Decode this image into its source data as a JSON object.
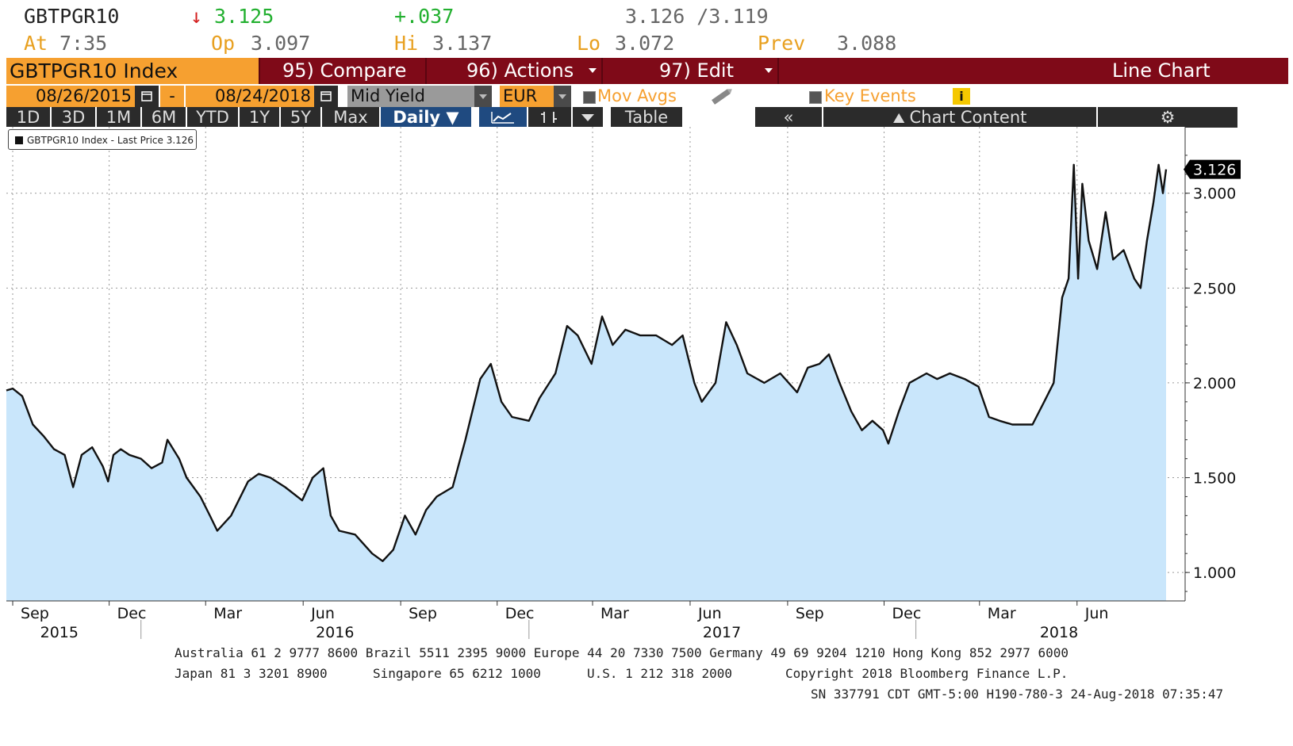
{
  "quote": {
    "ticker": "GBTPGR10",
    "arrow": "↓",
    "last": "3.125",
    "change": "+.037",
    "bid_ask": "3.126 /3.119",
    "at_label": "At",
    "at_time": "7:35",
    "open_label": "Op",
    "open": "3.097",
    "high_label": "Hi",
    "high": "3.137",
    "low_label": "Lo",
    "low": "3.072",
    "prev_label": "Prev",
    "prev": "3.088"
  },
  "titlebar": {
    "security": "GBTPGR10 Index",
    "compare": "95) Compare",
    "actions": "96) Actions",
    "edit": "97) Edit",
    "chart_type": "Line Chart"
  },
  "controls": {
    "start_date": "08/26/2015",
    "dash": "-",
    "end_date": "08/24/2018",
    "field": "Mid Yield",
    "currency": "EUR",
    "mov_avgs": "Mov Avgs",
    "key_events": "Key Events",
    "info": "i"
  },
  "periods": [
    "1D",
    "3D",
    "1M",
    "6M",
    "YTD",
    "1Y",
    "5Y",
    "Max"
  ],
  "frequency": "Daily ▼",
  "table_label": "Table",
  "chart_content": "Chart Content",
  "collapse_label": "«",
  "legend_text": "GBTPGR10 Index - Last Price 3.126",
  "last_price_tag": "3.126",
  "colors": {
    "area": "#c9e6fb",
    "line": "#111111",
    "titlebar": "#7f0a18",
    "orange": "#f6a030"
  },
  "chart_data": {
    "type": "area",
    "title": "",
    "series": [
      {
        "name": "GBTPGR10 Index - Last Price",
        "points": [
          [
            "2015-08-26",
            1.96
          ],
          [
            "2015-09-01",
            1.97
          ],
          [
            "2015-09-10",
            1.93
          ],
          [
            "2015-09-20",
            1.78
          ],
          [
            "2015-09-30",
            1.72
          ],
          [
            "2015-10-10",
            1.65
          ],
          [
            "2015-10-20",
            1.62
          ],
          [
            "2015-10-28",
            1.45
          ],
          [
            "2015-11-05",
            1.62
          ],
          [
            "2015-11-15",
            1.66
          ],
          [
            "2015-11-25",
            1.56
          ],
          [
            "2015-11-30",
            1.48
          ],
          [
            "2015-12-05",
            1.62
          ],
          [
            "2015-12-12",
            1.65
          ],
          [
            "2015-12-20",
            1.62
          ],
          [
            "2015-12-31",
            1.6
          ],
          [
            "2016-01-10",
            1.55
          ],
          [
            "2016-01-20",
            1.58
          ],
          [
            "2016-01-25",
            1.7
          ],
          [
            "2016-02-05",
            1.6
          ],
          [
            "2016-02-12",
            1.5
          ],
          [
            "2016-02-25",
            1.4
          ],
          [
            "2016-03-05",
            1.3
          ],
          [
            "2016-03-12",
            1.22
          ],
          [
            "2016-03-25",
            1.3
          ],
          [
            "2016-04-10",
            1.48
          ],
          [
            "2016-04-20",
            1.52
          ],
          [
            "2016-05-01",
            1.5
          ],
          [
            "2016-05-15",
            1.45
          ],
          [
            "2016-05-31",
            1.38
          ],
          [
            "2016-06-10",
            1.5
          ],
          [
            "2016-06-20",
            1.55
          ],
          [
            "2016-06-27",
            1.3
          ],
          [
            "2016-07-05",
            1.22
          ],
          [
            "2016-07-20",
            1.2
          ],
          [
            "2016-08-05",
            1.1
          ],
          [
            "2016-08-15",
            1.06
          ],
          [
            "2016-08-25",
            1.12
          ],
          [
            "2016-09-05",
            1.3
          ],
          [
            "2016-09-15",
            1.2
          ],
          [
            "2016-09-25",
            1.33
          ],
          [
            "2016-10-05",
            1.4
          ],
          [
            "2016-10-20",
            1.45
          ],
          [
            "2016-11-01",
            1.7
          ],
          [
            "2016-11-15",
            2.02
          ],
          [
            "2016-11-25",
            2.1
          ],
          [
            "2016-12-05",
            1.9
          ],
          [
            "2016-12-15",
            1.82
          ],
          [
            "2016-12-31",
            1.8
          ],
          [
            "2017-01-10",
            1.92
          ],
          [
            "2017-01-25",
            2.05
          ],
          [
            "2017-02-05",
            2.3
          ],
          [
            "2017-02-15",
            2.25
          ],
          [
            "2017-02-28",
            2.1
          ],
          [
            "2017-03-10",
            2.35
          ],
          [
            "2017-03-20",
            2.2
          ],
          [
            "2017-04-01",
            2.28
          ],
          [
            "2017-04-15",
            2.25
          ],
          [
            "2017-04-30",
            2.25
          ],
          [
            "2017-05-15",
            2.2
          ],
          [
            "2017-05-25",
            2.25
          ],
          [
            "2017-06-05",
            2.0
          ],
          [
            "2017-06-12",
            1.9
          ],
          [
            "2017-06-25",
            2.0
          ],
          [
            "2017-07-05",
            2.32
          ],
          [
            "2017-07-15",
            2.2
          ],
          [
            "2017-07-25",
            2.05
          ],
          [
            "2017-08-10",
            2.0
          ],
          [
            "2017-08-25",
            2.05
          ],
          [
            "2017-09-10",
            1.95
          ],
          [
            "2017-09-20",
            2.08
          ],
          [
            "2017-10-01",
            2.1
          ],
          [
            "2017-10-10",
            2.15
          ],
          [
            "2017-10-20",
            2.0
          ],
          [
            "2017-10-31",
            1.85
          ],
          [
            "2017-11-10",
            1.75
          ],
          [
            "2017-11-20",
            1.8
          ],
          [
            "2017-11-30",
            1.75
          ],
          [
            "2017-12-05",
            1.68
          ],
          [
            "2017-12-15",
            1.85
          ],
          [
            "2017-12-25",
            2.0
          ],
          [
            "2018-01-10",
            2.05
          ],
          [
            "2018-01-20",
            2.02
          ],
          [
            "2018-02-01",
            2.05
          ],
          [
            "2018-02-15",
            2.02
          ],
          [
            "2018-02-28",
            1.98
          ],
          [
            "2018-03-10",
            1.82
          ],
          [
            "2018-03-20",
            1.8
          ],
          [
            "2018-04-01",
            1.78
          ],
          [
            "2018-04-10",
            1.78
          ],
          [
            "2018-04-20",
            1.78
          ],
          [
            "2018-05-01",
            1.9
          ],
          [
            "2018-05-10",
            2.0
          ],
          [
            "2018-05-18",
            2.45
          ],
          [
            "2018-05-24",
            2.55
          ],
          [
            "2018-05-29",
            3.15
          ],
          [
            "2018-06-02",
            2.55
          ],
          [
            "2018-06-06",
            3.05
          ],
          [
            "2018-06-12",
            2.75
          ],
          [
            "2018-06-20",
            2.6
          ],
          [
            "2018-06-28",
            2.9
          ],
          [
            "2018-07-05",
            2.65
          ],
          [
            "2018-07-15",
            2.7
          ],
          [
            "2018-07-25",
            2.55
          ],
          [
            "2018-07-31",
            2.5
          ],
          [
            "2018-08-06",
            2.75
          ],
          [
            "2018-08-12",
            2.95
          ],
          [
            "2018-08-17",
            3.15
          ],
          [
            "2018-08-21",
            3.0
          ],
          [
            "2018-08-24",
            3.126
          ]
        ]
      }
    ],
    "y_ticks": [
      "1.000",
      "1.500",
      "2.000",
      "2.500",
      "3.000"
    ],
    "ylim": [
      0.85,
      3.35
    ],
    "x_month_labels": [
      "Sep",
      "Dec",
      "Mar",
      "Jun",
      "Sep",
      "Dec",
      "Mar",
      "Jun",
      "Sep",
      "Dec",
      "Mar",
      "Jun"
    ],
    "x_year_labels": [
      "2015",
      "2016",
      "2017",
      "2018"
    ],
    "grid": true,
    "legend_position": "top-left"
  },
  "footer": {
    "line1": "Australia 61 2 9777 8600 Brazil 5511 2395 9000 Europe 44 20 7330 7500 Germany 49 69 9204 1210 Hong Kong 852 2977 6000",
    "line2a": "Japan 81 3 3201 8900",
    "line2b": "Singapore 65 6212 1000",
    "line2c": "U.S. 1 212 318 2000",
    "line2d": "Copyright 2018 Bloomberg Finance L.P.",
    "line3": "SN 337791 CDT  GMT-5:00 H190-780-3 24-Aug-2018 07:35:47"
  }
}
